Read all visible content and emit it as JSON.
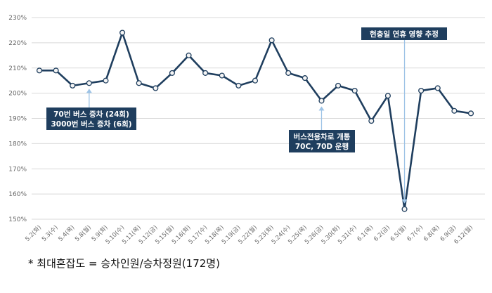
{
  "chart_data": {
    "type": "line",
    "categories": [
      "5.2(화)",
      "5.3(수)",
      "5.4(목)",
      "5.8(월)",
      "5.9(화)",
      "5.10(수)",
      "5.11(목)",
      "5.12(금)",
      "5.15(월)",
      "5.16(화)",
      "5.17(수)",
      "5.18(목)",
      "5.19(금)",
      "5.22(월)",
      "5.23(화)",
      "5.24(수)",
      "5.25(목)",
      "5.26(금)",
      "5.30(화)",
      "5.31(수)",
      "6.1(목)",
      "6.2(금)",
      "6.5(월)",
      "6.7(수)",
      "6.8(목)",
      "6.9(금)",
      "6.12(월)"
    ],
    "series": [
      {
        "values": [
          209,
          209,
          203,
          204,
          205,
          224,
          204,
          202,
          208,
          215,
          208,
          207,
          203,
          205,
          221,
          208,
          206,
          197,
          203,
          201,
          189,
          199,
          154,
          201,
          202,
          193,
          192
        ]
      }
    ],
    "ylim": [
      150,
      230
    ],
    "yticks": [
      "150%",
      "160%",
      "170%",
      "180%",
      "190%",
      "200%",
      "210%",
      "220%",
      "230%"
    ],
    "grid": true,
    "line_color": "#1f3e5e",
    "annotations": [
      {
        "index": 3,
        "lines": [
          "70번 버스 증차 (24회)",
          "3000번 버스 증차 (6회)"
        ]
      },
      {
        "index": 17,
        "lines": [
          "버스전용차로 개통",
          "70C, 70D 운행"
        ]
      },
      {
        "index": 22,
        "lines": [
          "현충일 연휴 영향 추정"
        ]
      }
    ]
  },
  "footnote": "*  최대혼잡도  =  승차인원/승차정원(172명)"
}
